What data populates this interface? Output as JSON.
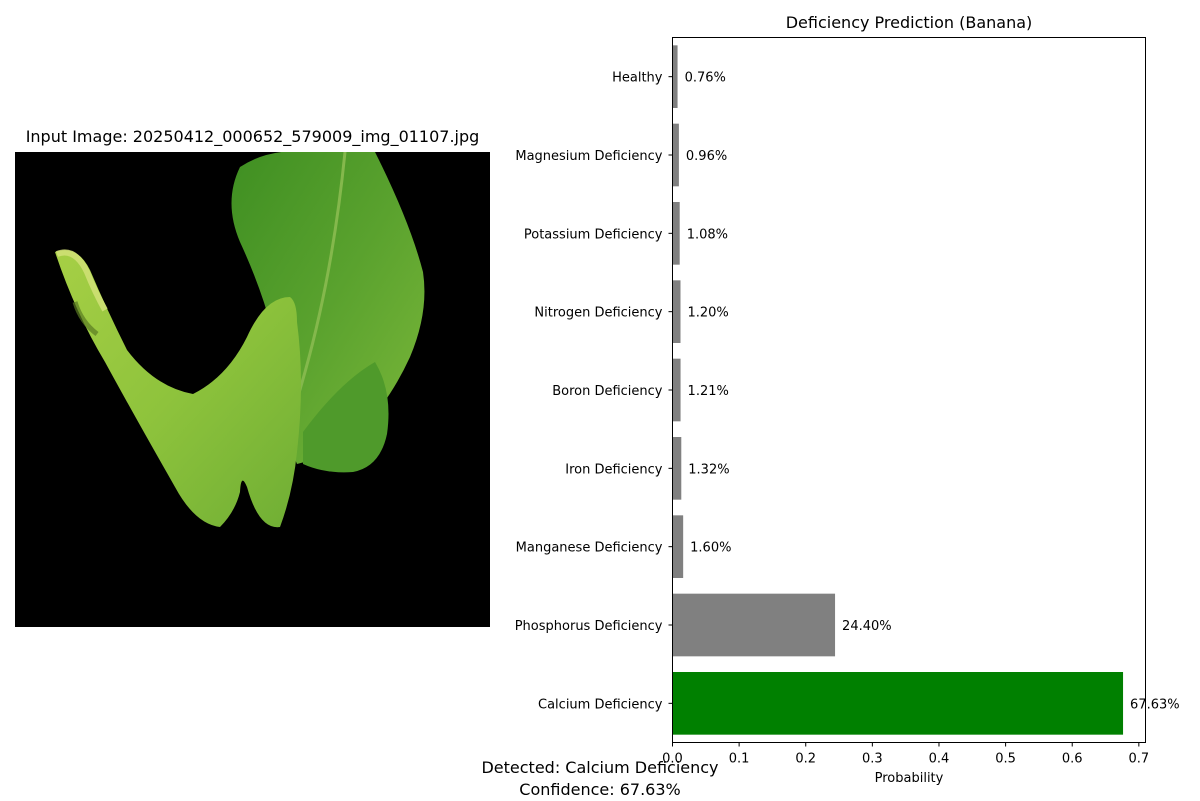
{
  "image_panel": {
    "title": "Input Image: 20250412_000652_579009_img_01107.jpg"
  },
  "chart_data": {
    "type": "bar",
    "orientation": "horizontal",
    "title": "Deficiency Prediction (Banana)",
    "xlabel": "Probability",
    "ylabel": "",
    "xlim": [
      0,
      0.71
    ],
    "x_ticks": [
      "0.0",
      "0.1",
      "0.2",
      "0.3",
      "0.4",
      "0.5",
      "0.6",
      "0.7"
    ],
    "grid": false,
    "categories": [
      "Calcium Deficiency",
      "Phosphorus Deficiency",
      "Manganese Deficiency",
      "Iron Deficiency",
      "Boron Deficiency",
      "Nitrogen Deficiency",
      "Potassium Deficiency",
      "Magnesium Deficiency",
      "Healthy"
    ],
    "values": [
      0.6763,
      0.244,
      0.016,
      0.0132,
      0.0121,
      0.012,
      0.0108,
      0.0096,
      0.0076
    ],
    "data_labels": [
      "67.63%",
      "24.40%",
      "1.60%",
      "1.32%",
      "1.21%",
      "1.20%",
      "1.08%",
      "0.96%",
      "0.76%"
    ],
    "colors": {
      "highlight": "#008000",
      "default": "#808080"
    }
  },
  "summary": {
    "detected": "Detected: Calcium Deficiency",
    "confidence": "Confidence: 67.63%"
  }
}
